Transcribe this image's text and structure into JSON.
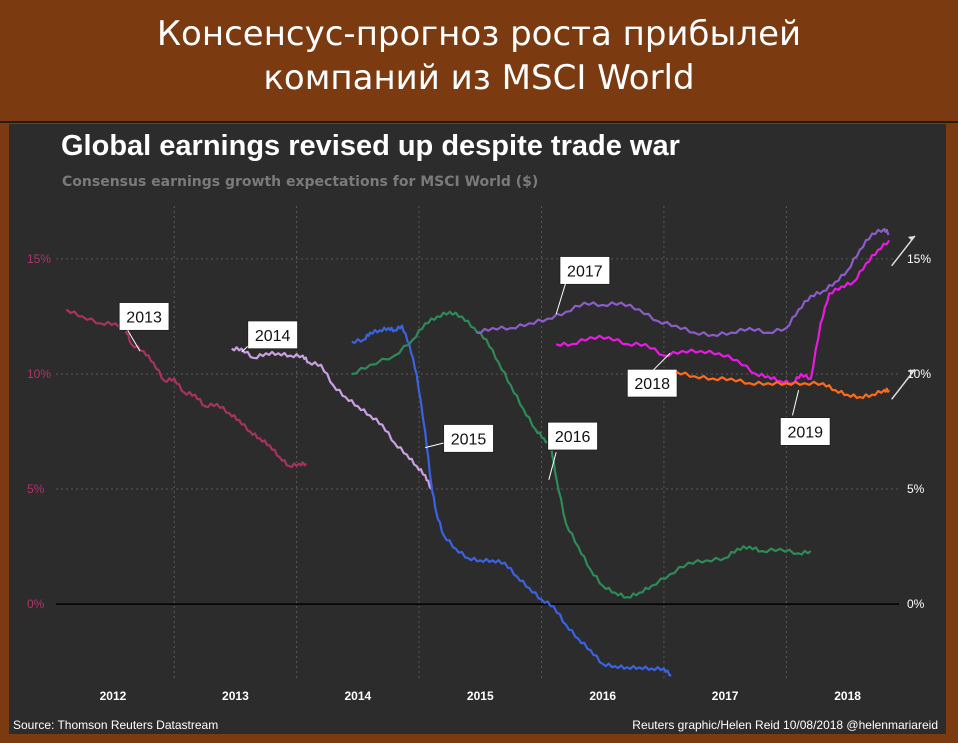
{
  "banner": {
    "line1": "Консенсус-прогноз роста прибылей",
    "line2": "компаний из MSCI World"
  },
  "footer": {
    "source": "Source: Thomson Reuters Datastream",
    "credit": "Reuters graphic/Helen Reid 10/08/2018 @helenmariareid"
  },
  "chart_data": {
    "type": "line",
    "title": "Global earnings revised up despite trade war",
    "subtitle": "Consensus earnings growth expectations for MSCI World ($)",
    "xlabel": "",
    "ylabel": "",
    "x_ticks": [
      "2012",
      "2013",
      "2014",
      "2015",
      "2016",
      "2017",
      "2018"
    ],
    "xlim": [
      2011.6,
      2018.42
    ],
    "ylim": [
      -3.3,
      17.3
    ],
    "y_ticks_left": [
      "15%",
      "10%",
      "5%",
      "0%"
    ],
    "y_ticks_right": [
      "15%",
      "10%",
      "5%",
      "0%"
    ],
    "y_tick_values": [
      15,
      10,
      5,
      0
    ],
    "grid": true,
    "colors": {
      "background": "#2c2c2c",
      "grid": "#5a5a5a",
      "zero_line": "#000000",
      "left_axis_text": "#b2336b",
      "right_axis_text": "#ffffff"
    },
    "series": [
      {
        "name": "2013",
        "color": "#a8325f",
        "label_x": 2012.05,
        "label_y": 12.5,
        "x": [
          2011.62,
          2011.75,
          2011.9,
          2012.02,
          2012.1,
          2012.15,
          2012.25,
          2012.33,
          2012.42,
          2012.5,
          2012.58,
          2012.67,
          2012.75,
          2012.85,
          2012.95,
          2013.03,
          2013.12,
          2013.2,
          2013.28,
          2013.36,
          2013.44,
          2013.52,
          2013.58
        ],
        "values": [
          12.8,
          12.5,
          12.2,
          12.2,
          12.0,
          11.3,
          11.0,
          10.5,
          9.7,
          9.8,
          9.2,
          9.1,
          8.6,
          8.7,
          8.3,
          8.0,
          7.5,
          7.2,
          6.9,
          6.4,
          6.0,
          6.1,
          6.1
        ]
      },
      {
        "name": "2014",
        "color": "#c9a0e0",
        "label_x": 2013.1,
        "label_y": 11.7,
        "x": [
          2012.97,
          2013.05,
          2013.15,
          2013.25,
          2013.35,
          2013.45,
          2013.55,
          2013.6,
          2013.7,
          2013.8,
          2013.9,
          2014.0,
          2014.1,
          2014.2,
          2014.3,
          2014.4,
          2014.48,
          2014.55,
          2014.6
        ],
        "values": [
          11.1,
          11.1,
          10.7,
          10.9,
          10.9,
          10.8,
          10.8,
          10.5,
          10.4,
          9.5,
          9.0,
          8.6,
          8.2,
          7.8,
          7.0,
          6.5,
          6.0,
          5.6,
          5.0
        ]
      },
      {
        "name": "2015",
        "color": "#3c62e0",
        "label_x": 2014.7,
        "label_y": 7.2,
        "x": [
          2013.95,
          2014.05,
          2014.1,
          2014.18,
          2014.25,
          2014.3,
          2014.36,
          2014.42,
          2014.48,
          2014.55,
          2014.6,
          2014.64,
          2014.7,
          2014.8,
          2014.9,
          2015.0,
          2015.1,
          2015.2,
          2015.3,
          2015.4,
          2015.5,
          2015.6,
          2015.7,
          2015.8,
          2015.9,
          2016.0,
          2016.1,
          2016.2,
          2016.3,
          2016.4,
          2016.5,
          2016.56
        ],
        "values": [
          11.4,
          11.5,
          11.8,
          11.9,
          12.0,
          11.9,
          12.1,
          11.3,
          10.0,
          7.5,
          5.2,
          4.0,
          3.0,
          2.4,
          2.0,
          1.9,
          1.9,
          1.8,
          1.2,
          0.7,
          0.2,
          -0.1,
          -0.9,
          -1.5,
          -2.0,
          -2.6,
          -2.7,
          -2.75,
          -2.75,
          -2.8,
          -2.8,
          -3.1
        ]
      },
      {
        "name": "2016",
        "color": "#2e8b57",
        "label_x": 2015.55,
        "label_y": 7.3,
        "x": [
          2013.95,
          2014.1,
          2014.3,
          2014.45,
          2014.55,
          2014.65,
          2014.75,
          2014.85,
          2014.95,
          2015.05,
          2015.15,
          2015.25,
          2015.35,
          2015.45,
          2015.52,
          2015.58,
          2015.62,
          2015.7,
          2015.8,
          2015.9,
          2016.0,
          2016.1,
          2016.2,
          2016.3,
          2016.4,
          2016.55,
          2016.7,
          2016.85,
          2017.0,
          2017.1,
          2017.2,
          2017.3,
          2017.45,
          2017.6,
          2017.7
        ],
        "values": [
          10.0,
          10.4,
          10.8,
          11.5,
          12.2,
          12.5,
          12.7,
          12.5,
          12.0,
          11.5,
          10.5,
          9.5,
          8.5,
          7.6,
          7.2,
          6.8,
          5.5,
          3.5,
          2.5,
          1.5,
          0.8,
          0.5,
          0.3,
          0.5,
          0.8,
          1.3,
          1.8,
          1.9,
          2.0,
          2.4,
          2.5,
          2.3,
          2.4,
          2.2,
          2.3
        ]
      },
      {
        "name": "2017",
        "color": "#8b5cc8",
        "label_x": 2015.65,
        "label_y": 14.5,
        "x": [
          2014.97,
          2015.1,
          2015.25,
          2015.4,
          2015.55,
          2015.7,
          2015.85,
          2016.0,
          2016.15,
          2016.3,
          2016.45,
          2016.6,
          2016.75,
          2016.9,
          2017.05,
          2017.2,
          2017.35,
          2017.5,
          2017.6,
          2017.7,
          2017.8,
          2017.9,
          2018.0,
          2018.1,
          2018.2,
          2018.3,
          2018.34
        ],
        "values": [
          11.8,
          12.0,
          12.0,
          12.2,
          12.4,
          12.7,
          13.1,
          13.0,
          13.1,
          12.8,
          12.3,
          12.1,
          11.8,
          11.7,
          11.8,
          12.0,
          11.8,
          12.0,
          12.8,
          13.4,
          13.6,
          14.0,
          14.5,
          15.4,
          16.1,
          16.3,
          16.1
        ]
      },
      {
        "name": "2018",
        "color": "#e81ae0",
        "label_x": 2016.2,
        "label_y": 9.6,
        "x": [
          2015.62,
          2015.75,
          2015.9,
          2016.05,
          2016.2,
          2016.35,
          2016.5,
          2016.65,
          2016.8,
          2016.95,
          2017.1,
          2017.25,
          2017.35,
          2017.45,
          2017.55,
          2017.62,
          2017.7,
          2017.78,
          2017.85,
          2017.95,
          2018.05,
          2018.15,
          2018.25,
          2018.34
        ],
        "values": [
          11.3,
          11.3,
          11.6,
          11.6,
          11.3,
          11.3,
          10.8,
          11.0,
          11.0,
          10.9,
          10.6,
          10.0,
          9.9,
          9.7,
          9.6,
          10.0,
          9.8,
          12.2,
          13.5,
          13.8,
          14.0,
          14.8,
          15.4,
          15.8
        ]
      },
      {
        "name": "2019",
        "color": "#ff6a1a",
        "label_x": 2017.45,
        "label_y": 7.5,
        "x": [
          2016.6,
          2016.75,
          2016.9,
          2017.05,
          2017.2,
          2017.35,
          2017.5,
          2017.65,
          2017.8,
          2017.9,
          2018.0,
          2018.1,
          2018.2,
          2018.3,
          2018.34
        ],
        "values": [
          10.1,
          9.9,
          9.8,
          9.8,
          9.6,
          9.6,
          9.6,
          9.6,
          9.6,
          9.3,
          9.1,
          9.0,
          9.1,
          9.3,
          9.3
        ]
      }
    ]
  }
}
